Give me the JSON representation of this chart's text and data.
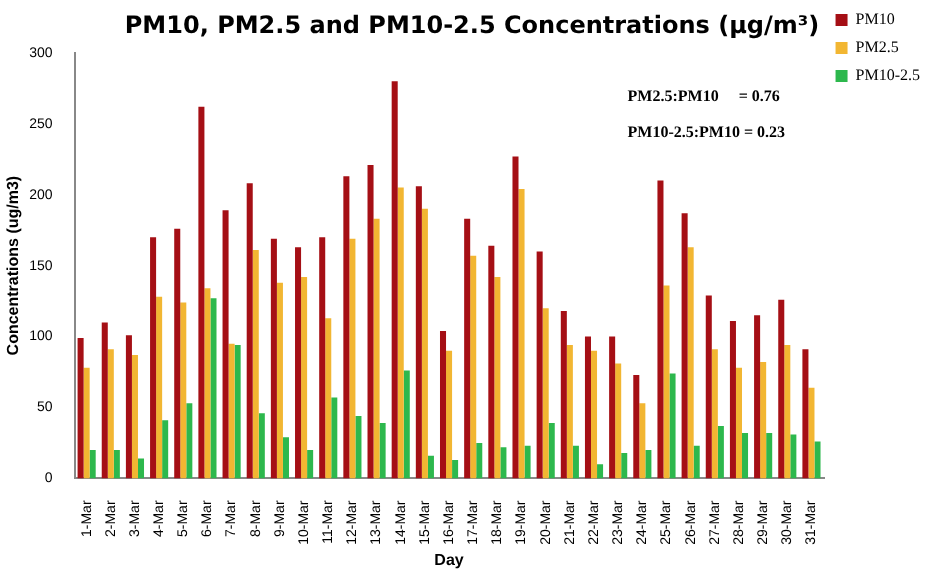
{
  "chart_data": {
    "type": "bar",
    "title": "PM10, PM2.5 and PM10-2.5 Concentrations (μg/m³)",
    "xlabel": "Day",
    "ylabel": "Concentrations (ug/m3)",
    "categories": [
      "1-Mar",
      "2-Mar",
      "3-Mar",
      "4-Mar",
      "5-Mar",
      "6-Mar",
      "7-Mar",
      "8-Mar",
      "9-Mar",
      "10-Mar",
      "11-Mar",
      "12-Mar",
      "13-Mar",
      "14-Mar",
      "15-Mar",
      "16-Mar",
      "17-Mar",
      "18-Mar",
      "19-Mar",
      "20-Mar",
      "21-Mar",
      "22-Mar",
      "23-Mar",
      "24-Mar",
      "25-Mar",
      "26-Mar",
      "27-Mar",
      "28-Mar",
      "29-Mar",
      "30-Mar",
      "31-Mar"
    ],
    "series": [
      {
        "name": "PM10",
        "color": "#a50f15",
        "values": [
          99,
          110,
          101,
          170,
          176,
          262,
          189,
          208,
          169,
          163,
          170,
          213,
          221,
          280,
          206,
          104,
          183,
          164,
          227,
          160,
          118,
          100,
          100,
          73,
          210,
          187,
          129,
          111,
          115,
          126,
          91
        ]
      },
      {
        "name": "PM2.5",
        "color": "#f2b632",
        "values": [
          78,
          91,
          87,
          128,
          124,
          134,
          95,
          161,
          138,
          142,
          113,
          169,
          183,
          205,
          190,
          90,
          157,
          142,
          204,
          120,
          94,
          90,
          81,
          53,
          136,
          163,
          91,
          78,
          82,
          94,
          64
        ]
      },
      {
        "name": "PM10-2.5",
        "color": "#2db84d",
        "values": [
          20,
          20,
          14,
          41,
          53,
          127,
          94,
          46,
          29,
          20,
          57,
          44,
          39,
          76,
          16,
          13,
          25,
          22,
          23,
          39,
          23,
          10,
          18,
          20,
          74,
          23,
          37,
          32,
          32,
          31,
          26
        ]
      }
    ],
    "ylim": [
      0,
      300
    ],
    "yticks": [
      0,
      50,
      100,
      150,
      200,
      250,
      300
    ],
    "grid": false,
    "legend": "right",
    "annotations": [
      "PM2.5:PM10     = 0.76",
      "PM10-2.5:PM10 = 0.23"
    ]
  }
}
